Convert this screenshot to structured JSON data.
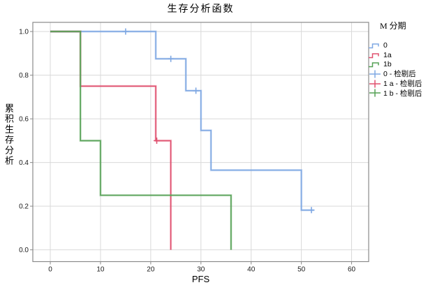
{
  "title": "生存分析函数",
  "x_axis": {
    "label": "PFS",
    "tick_labels": [
      "0",
      "10",
      "20",
      "30",
      "40",
      "50",
      "60"
    ]
  },
  "y_axis": {
    "label": "累积生存分析",
    "tick_labels": [
      "0.0",
      "0.2",
      "0.4",
      "0.6",
      "0.8",
      "1.0"
    ]
  },
  "legend": {
    "title": "M 分期",
    "entries": [
      {
        "label": "0",
        "marker": "step",
        "color": "#7FA8E3"
      },
      {
        "label": "1a",
        "marker": "step",
        "color": "#E0516F"
      },
      {
        "label": "1b",
        "marker": "step",
        "color": "#55A155"
      },
      {
        "label": "0 - 检剔后",
        "marker": "plus",
        "color": "#7FA8E3"
      },
      {
        "label": "1 a - 检剔后",
        "marker": "plus",
        "color": "#E0516F"
      },
      {
        "label": "1 b - 检剔后",
        "marker": "plus",
        "color": "#55A155"
      }
    ]
  },
  "chart_data": {
    "type": "line",
    "subtype": "kaplan-meier-step",
    "title": "生存分析函数",
    "xlabel": "PFS",
    "ylabel": "累积生存分析",
    "xlim": [
      -3.48,
      63.4
    ],
    "ylim": [
      -0.054,
      1.042
    ],
    "x_ticks": [
      0,
      10,
      20,
      30,
      40,
      50,
      60
    ],
    "y_ticks": [
      0.0,
      0.2,
      0.4,
      0.6,
      0.8,
      1.0
    ],
    "grid": true,
    "legend_position": "right",
    "colors": {
      "grid": "#d9d9d9",
      "frame": "#8a8a8a",
      "text": "#1a1a1a"
    },
    "series": [
      {
        "name": "0",
        "color": "#7FA8E3",
        "steps": [
          [
            0,
            1
          ],
          [
            21,
            1
          ],
          [
            21,
            0.875
          ],
          [
            27,
            0.875
          ],
          [
            27,
            0.729
          ],
          [
            30,
            0.729
          ],
          [
            30,
            0.547
          ],
          [
            32,
            0.547
          ],
          [
            32,
            0.365
          ],
          [
            50,
            0.365
          ],
          [
            50,
            0.182
          ],
          [
            52.5,
            0.182
          ]
        ],
        "censored": [
          [
            15,
            1
          ],
          [
            24,
            0.875
          ],
          [
            29,
            0.729
          ],
          [
            52,
            0.182
          ]
        ]
      },
      {
        "name": "1a",
        "color": "#E0516F",
        "steps": [
          [
            0,
            1
          ],
          [
            6,
            1
          ],
          [
            6,
            0.75
          ],
          [
            21,
            0.75
          ],
          [
            21,
            0.5
          ],
          [
            24,
            0.5
          ],
          [
            24,
            0
          ]
        ],
        "censored": [
          [
            21.2,
            0.5
          ]
        ]
      },
      {
        "name": "1b",
        "color": "#55A155",
        "steps": [
          [
            0,
            1
          ],
          [
            6,
            1
          ],
          [
            6,
            0.5
          ],
          [
            10,
            0.5
          ],
          [
            10,
            0.25
          ],
          [
            36,
            0.25
          ],
          [
            36,
            0
          ]
        ],
        "censored": []
      }
    ]
  }
}
